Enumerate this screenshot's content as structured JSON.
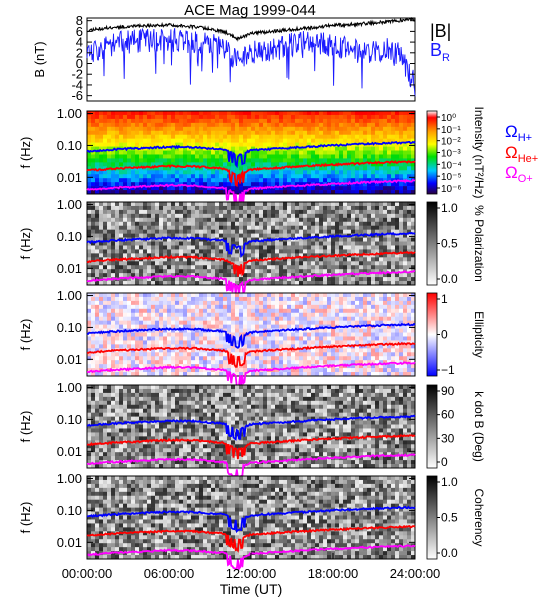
{
  "figure": {
    "title": "ACE Mag 1999-044",
    "xlabel": "Time (UT)",
    "xticks": [
      "00:00:00",
      "06:00:00",
      "12:00:00",
      "18:00:00",
      "24:00:00"
    ]
  },
  "colors": {
    "b_total": "#000000",
    "b_r": "#1a1aff",
    "h_plus": "#0000ff",
    "he_plus": "#ff0000",
    "o_plus": "#ff00ff"
  },
  "chart_data": [
    {
      "type": "line",
      "name": "magnetic-field",
      "ylabel": "B (nT)",
      "ylim": [
        -7,
        8.5
      ],
      "yticks": [
        "8",
        "6",
        "4",
        "2",
        "0",
        "-2",
        "-4",
        "-6"
      ],
      "legend": {
        "total": "|B|",
        "radial": "B",
        "radial_sub": "R"
      },
      "x": [
        0,
        2,
        4,
        6,
        8,
        10,
        11,
        12,
        14,
        16,
        18,
        20,
        22,
        23,
        24
      ],
      "series": [
        {
          "name": "|B|",
          "values": [
            6.2,
            6.8,
            7.0,
            7.2,
            6.8,
            6.0,
            4.6,
            5.6,
            6.1,
            6.6,
            7.1,
            7.4,
            7.8,
            8.1,
            8.2
          ]
        },
        {
          "name": "B_R",
          "values": [
            2.0,
            3.8,
            4.2,
            4.5,
            3.8,
            3.0,
            0.5,
            2.0,
            3.0,
            4.0,
            3.5,
            2.0,
            2.8,
            1.5,
            -4.0
          ]
        }
      ]
    },
    {
      "type": "heatmap",
      "name": "power-spectrum",
      "ylabel": "f (Hz)",
      "yticks": [
        "1.00",
        "0.10",
        "0.01"
      ],
      "colorbar_label": "Intensity (nT²/Hz)",
      "colorbar_ticks": [
        "10⁰",
        "10⁻¹",
        "10⁻²",
        "10⁻³",
        "10⁻⁴",
        "10⁻⁵",
        "10⁻⁶"
      ],
      "colormap": "rainbow"
    },
    {
      "type": "heatmap",
      "name": "percent-polarization",
      "ylabel": "f (Hz)",
      "yticks": [
        "1.00",
        "0.10",
        "0.01"
      ],
      "colorbar_label": "% Polarization",
      "colorbar_ticks": [
        "1.0",
        "0.5",
        "0.0"
      ],
      "colormap": "gray"
    },
    {
      "type": "heatmap",
      "name": "ellipticity",
      "ylabel": "f (Hz)",
      "yticks": [
        "1.00",
        "0.10",
        "0.01"
      ],
      "colorbar_label": "Ellipticity",
      "colorbar_ticks": [
        "1",
        "0",
        "−1"
      ],
      "colormap": "red-white-blue"
    },
    {
      "type": "heatmap",
      "name": "k-dot-b",
      "ylabel": "f (Hz)",
      "yticks": [
        "1.00",
        "0.10",
        "0.01"
      ],
      "colorbar_label": "k dot B (Deg)",
      "colorbar_ticks": [
        "90",
        "60",
        "30",
        "0"
      ],
      "colormap": "gray"
    },
    {
      "type": "heatmap",
      "name": "coherency",
      "ylabel": "f (Hz)",
      "yticks": [
        "1.00",
        "0.10",
        "0.01"
      ],
      "colorbar_label": "Coherency",
      "colorbar_ticks": [
        "1.0",
        "0.5",
        "0.0"
      ],
      "colormap": "gray"
    }
  ],
  "gyrofrequency_legend": {
    "symbol": "Ω",
    "items": [
      {
        "sub": "H+"
      },
      {
        "sub": "He+"
      },
      {
        "sub": "O+"
      }
    ]
  },
  "gyrofrequency_lines": {
    "x": [
      0,
      2,
      4,
      6,
      8,
      9,
      10,
      11,
      12,
      14,
      16,
      18,
      20,
      22,
      24
    ],
    "h_plus_hz": [
      0.065,
      0.075,
      0.082,
      0.09,
      0.088,
      0.08,
      0.075,
      0.045,
      0.07,
      0.08,
      0.09,
      0.1,
      0.11,
      0.118,
      0.125
    ]
  }
}
